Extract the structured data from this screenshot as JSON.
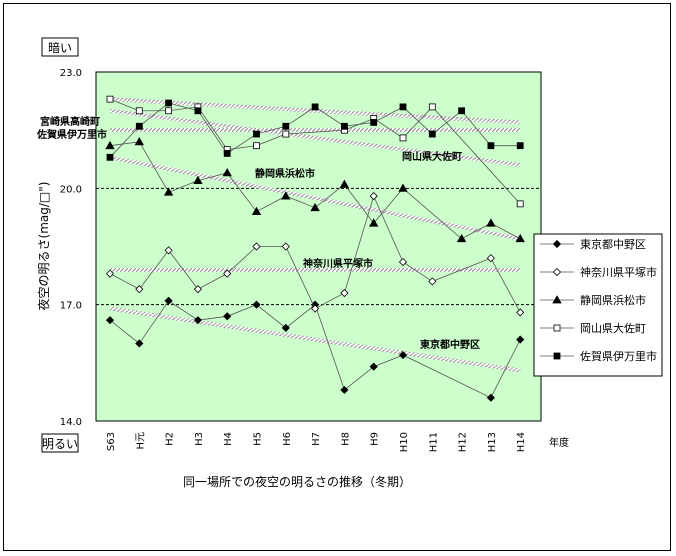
{
  "chart_data": {
    "type": "line",
    "title": "同一場所での夜空の明るさの推移（冬期）",
    "ylabel": "夜空の明るさ(mag/□\")",
    "xlabel": "年度",
    "y_top_label": "暗い",
    "y_bottom_label": "明るい",
    "ylim": [
      14.0,
      23.0
    ],
    "yticks": [
      "23.0",
      "20.0",
      "17.0",
      "14.0"
    ],
    "dashed_reference_lines": [
      20.0,
      17.0
    ],
    "legend_position": "right",
    "background_color": "#ccffcc",
    "categories": [
      "S63",
      "H元",
      "H2",
      "H3",
      "H4",
      "H5",
      "H6",
      "H7",
      "H8",
      "H9",
      "H10",
      "H11",
      "H12",
      "H13",
      "H14"
    ],
    "series": [
      {
        "name": "東京都中野区",
        "marker": "diamond-filled",
        "values": [
          16.6,
          16.0,
          17.1,
          16.6,
          16.7,
          17.0,
          16.4,
          17.0,
          14.8,
          15.4,
          15.7,
          null,
          null,
          14.6,
          16.1
        ]
      },
      {
        "name": "神奈川県平塚市",
        "marker": "diamond-open",
        "values": [
          17.8,
          17.4,
          18.4,
          17.4,
          17.8,
          18.5,
          18.5,
          16.9,
          17.3,
          19.8,
          18.1,
          17.6,
          null,
          18.2,
          16.8
        ]
      },
      {
        "name": "静岡県浜松市",
        "marker": "triangle-filled",
        "values": [
          21.1,
          21.2,
          19.9,
          20.2,
          20.4,
          19.4,
          19.8,
          19.5,
          20.1,
          19.1,
          20.0,
          null,
          18.7,
          19.1,
          18.7
        ]
      },
      {
        "name": "岡山県大佐町",
        "marker": "square-open",
        "values": [
          22.3,
          22.0,
          22.0,
          22.1,
          21.0,
          21.1,
          21.4,
          null,
          21.5,
          21.8,
          21.3,
          22.1,
          null,
          null,
          19.6
        ]
      },
      {
        "name": "佐賀県伊万里市",
        "marker": "square-filled",
        "values": [
          20.8,
          21.6,
          22.2,
          22.0,
          20.9,
          21.4,
          21.6,
          22.1,
          21.6,
          21.7,
          22.1,
          21.4,
          22.0,
          21.1,
          21.1
        ]
      }
    ],
    "trendlines": [
      {
        "label": "宮崎県高崎町",
        "values_at_ends": [
          22.3,
          21.7
        ]
      },
      {
        "label": "佐賀県伊万里市",
        "values_at_ends": [
          22.0,
          20.6
        ]
      },
      {
        "label": "岡山県大佐町",
        "values_at_ends": [
          21.5,
          21.5
        ]
      },
      {
        "label": "静岡県浜松市",
        "values_at_ends": [
          20.8,
          18.7
        ]
      },
      {
        "label": "神奈川県平塚市",
        "values_at_ends": [
          17.9,
          17.9
        ]
      },
      {
        "label": "東京都中野区",
        "values_at_ends": [
          16.9,
          15.3
        ]
      }
    ]
  }
}
